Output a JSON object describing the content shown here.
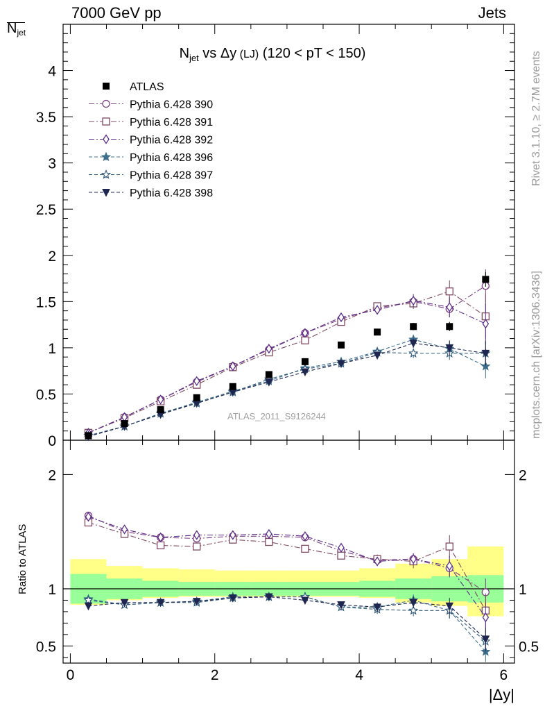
{
  "header": {
    "left": "7000 GeV pp",
    "right": "Jets",
    "side_top": "Rivet 3.1.10, ≥ 2.7M events",
    "side_bottom": "mcplots.cern.ch [arXiv:1306.3436]",
    "watermark": "ATLAS_2011_S9126244"
  },
  "labels": {
    "ylabel_top_main": "N",
    "ylabel_top_sub": "jet",
    "ylabel_ratio": "Ratio to ATLAS",
    "xlabel": "|Δy|",
    "title_main": "N",
    "title_sub": "jet",
    "title_vs": " vs Δy",
    "title_lj": " (LJ)",
    "title_range": " (120 < pT < 150)"
  },
  "colors": {
    "s390": "#7a3e82",
    "s391": "#7d4860",
    "s392": "#5a2c8a",
    "s396": "#3c6e8c",
    "s397": "#2e5878",
    "s398": "#1f2650",
    "band_inner": "#99ff99",
    "band_outer": "#ffff88"
  },
  "chart_data": [
    {
      "type": "scatter",
      "panel": "main",
      "xlim": [
        -0.1,
        6.15
      ],
      "ylim": [
        0,
        4.5
      ],
      "yticks": [
        0,
        0.5,
        1,
        1.5,
        2,
        2.5,
        3,
        3.5,
        4
      ],
      "ytick_labels": [
        "0",
        "0.5",
        "1",
        "1.5",
        "2",
        "2.5",
        "3",
        "3.5",
        "4"
      ],
      "x": [
        0.25,
        0.75,
        1.25,
        1.75,
        2.25,
        2.75,
        3.25,
        3.75,
        4.25,
        4.75,
        5.25,
        5.75
      ],
      "series": [
        {
          "name": "ATLAS",
          "key": "data",
          "marker": "square-filled",
          "line": "none",
          "values": [
            0.05,
            0.18,
            0.33,
            0.46,
            0.58,
            0.71,
            0.85,
            1.03,
            1.17,
            1.23,
            1.23,
            1.74
          ],
          "errors": [
            0.01,
            0.01,
            0.01,
            0.01,
            0.01,
            0.01,
            0.02,
            0.02,
            0.03,
            0.04,
            0.05,
            0.08
          ]
        },
        {
          "name": "Pythia 6.428 390",
          "key": "s390",
          "marker": "circle-open",
          "line": "dashdot",
          "values": [
            0.08,
            0.25,
            0.44,
            0.63,
            0.8,
            0.98,
            1.16,
            1.31,
            1.43,
            1.5,
            1.42,
            1.67
          ],
          "errors": [
            0.01,
            0.01,
            0.01,
            0.01,
            0.01,
            0.02,
            0.02,
            0.03,
            0.04,
            0.05,
            0.09,
            0.18
          ]
        },
        {
          "name": "Pythia 6.428 391",
          "key": "s391",
          "marker": "square-open",
          "line": "dashdot",
          "values": [
            0.08,
            0.24,
            0.42,
            0.6,
            0.79,
            0.95,
            1.08,
            1.28,
            1.45,
            1.48,
            1.61,
            1.34
          ],
          "errors": [
            0.01,
            0.01,
            0.01,
            0.01,
            0.01,
            0.02,
            0.02,
            0.03,
            0.04,
            0.06,
            0.12,
            0.24
          ]
        },
        {
          "name": "Pythia 6.428 392",
          "key": "s392",
          "marker": "diamond-open",
          "line": "dashdot",
          "values": [
            0.08,
            0.25,
            0.44,
            0.64,
            0.8,
            0.99,
            1.16,
            1.33,
            1.41,
            1.51,
            1.44,
            1.26
          ],
          "errors": [
            0.01,
            0.01,
            0.01,
            0.01,
            0.01,
            0.02,
            0.02,
            0.03,
            0.04,
            0.07,
            0.11,
            0.22
          ]
        },
        {
          "name": "Pythia 6.428 396",
          "key": "s396",
          "marker": "star-filled",
          "line": "dashed",
          "values": [
            0.05,
            0.15,
            0.29,
            0.41,
            0.53,
            0.64,
            0.78,
            0.85,
            0.96,
            1.09,
            0.99,
            0.8
          ],
          "errors": [
            0.01,
            0.01,
            0.01,
            0.01,
            0.01,
            0.01,
            0.02,
            0.02,
            0.04,
            0.05,
            0.08,
            0.13
          ]
        },
        {
          "name": "Pythia 6.428 397",
          "key": "s397",
          "marker": "star-open",
          "line": "dashed",
          "values": [
            0.05,
            0.15,
            0.29,
            0.4,
            0.52,
            0.66,
            0.77,
            0.83,
            0.95,
            0.94,
            0.94,
            0.94
          ],
          "errors": [
            0.01,
            0.01,
            0.01,
            0.01,
            0.01,
            0.01,
            0.02,
            0.02,
            0.04,
            0.05,
            0.07,
            0.14
          ]
        },
        {
          "name": "Pythia 6.428 398",
          "key": "s398",
          "marker": "triangle-down-filled",
          "line": "dashed",
          "values": [
            0.04,
            0.15,
            0.28,
            0.4,
            0.52,
            0.63,
            0.74,
            0.83,
            0.92,
            1.05,
            1.0,
            0.94
          ],
          "errors": [
            0.01,
            0.01,
            0.01,
            0.01,
            0.01,
            0.01,
            0.02,
            0.02,
            0.04,
            0.05,
            0.08,
            0.13
          ]
        }
      ]
    },
    {
      "type": "scatter",
      "panel": "ratio",
      "xlim": [
        -0.1,
        6.15
      ],
      "ylim": [
        0.35,
        2.3
      ],
      "yticks": [
        0.5,
        1,
        2
      ],
      "ytick_labels": [
        "0.5",
        "1",
        "2"
      ],
      "xticks": [
        0,
        2,
        4,
        6
      ],
      "xtick_labels": [
        "0",
        "2",
        "4",
        "6"
      ],
      "x": [
        0.25,
        0.75,
        1.25,
        1.75,
        2.25,
        2.75,
        3.25,
        3.75,
        4.25,
        4.75,
        5.25,
        5.75
      ],
      "band_inner": [
        [
          0.87,
          1.13
        ],
        [
          0.91,
          1.09
        ],
        [
          0.93,
          1.07
        ],
        [
          0.94,
          1.06
        ],
        [
          0.94,
          1.06
        ],
        [
          0.94,
          1.06
        ],
        [
          0.94,
          1.06
        ],
        [
          0.94,
          1.06
        ],
        [
          0.93,
          1.07
        ],
        [
          0.91,
          1.09
        ],
        [
          0.89,
          1.11
        ],
        [
          0.88,
          1.12
        ]
      ],
      "band_outer": [
        [
          0.86,
          1.26
        ],
        [
          0.9,
          1.2
        ],
        [
          0.92,
          1.18
        ],
        [
          0.93,
          1.17
        ],
        [
          0.93,
          1.16
        ],
        [
          0.93,
          1.16
        ],
        [
          0.93,
          1.16
        ],
        [
          0.93,
          1.16
        ],
        [
          0.92,
          1.18
        ],
        [
          0.88,
          1.22
        ],
        [
          0.85,
          1.26
        ],
        [
          0.76,
          1.37
        ]
      ],
      "series": [
        {
          "key": "s390",
          "marker": "circle-open",
          "line": "dashdot",
          "values": [
            1.64,
            1.5,
            1.45,
            1.44,
            1.46,
            1.46,
            1.45,
            1.33,
            1.25,
            1.26,
            1.18,
            0.97
          ],
          "errors": [
            0.02,
            0.02,
            0.02,
            0.02,
            0.02,
            0.02,
            0.03,
            0.03,
            0.04,
            0.05,
            0.08,
            0.12
          ]
        },
        {
          "key": "s391",
          "marker": "square-open",
          "line": "dashdot",
          "values": [
            1.58,
            1.48,
            1.38,
            1.37,
            1.43,
            1.41,
            1.35,
            1.29,
            1.26,
            1.24,
            1.37,
            0.81
          ],
          "errors": [
            0.02,
            0.02,
            0.02,
            0.02,
            0.02,
            0.02,
            0.03,
            0.03,
            0.04,
            0.06,
            0.1,
            0.15
          ]
        },
        {
          "key": "s392",
          "marker": "diamond-open",
          "line": "dashdot",
          "values": [
            1.63,
            1.52,
            1.45,
            1.47,
            1.47,
            1.48,
            1.46,
            1.36,
            1.24,
            1.26,
            1.2,
            0.75
          ],
          "errors": [
            0.02,
            0.02,
            0.02,
            0.02,
            0.02,
            0.02,
            0.03,
            0.03,
            0.04,
            0.05,
            0.09,
            0.13
          ]
        },
        {
          "key": "s396",
          "marker": "star-filled",
          "line": "dashed",
          "values": [
            0.91,
            0.86,
            0.88,
            0.89,
            0.93,
            0.93,
            0.93,
            0.84,
            0.84,
            0.9,
            0.81,
            0.45
          ],
          "errors": [
            0.02,
            0.02,
            0.02,
            0.02,
            0.02,
            0.02,
            0.02,
            0.03,
            0.04,
            0.05,
            0.07,
            0.09
          ]
        },
        {
          "key": "s397",
          "marker": "star-open",
          "line": "dashed",
          "values": [
            0.9,
            0.86,
            0.88,
            0.88,
            0.92,
            0.93,
            0.93,
            0.84,
            0.82,
            0.81,
            0.81,
            0.54
          ],
          "errors": [
            0.02,
            0.02,
            0.02,
            0.02,
            0.02,
            0.02,
            0.02,
            0.03,
            0.04,
            0.05,
            0.07,
            0.1
          ]
        },
        {
          "key": "s398",
          "marker": "triangle-down-filled",
          "line": "dashed",
          "values": [
            0.85,
            0.88,
            0.88,
            0.89,
            0.92,
            0.93,
            0.9,
            0.86,
            0.84,
            0.88,
            0.85,
            0.56
          ],
          "errors": [
            0.02,
            0.02,
            0.02,
            0.02,
            0.02,
            0.02,
            0.02,
            0.03,
            0.04,
            0.05,
            0.07,
            0.1
          ]
        }
      ]
    }
  ]
}
